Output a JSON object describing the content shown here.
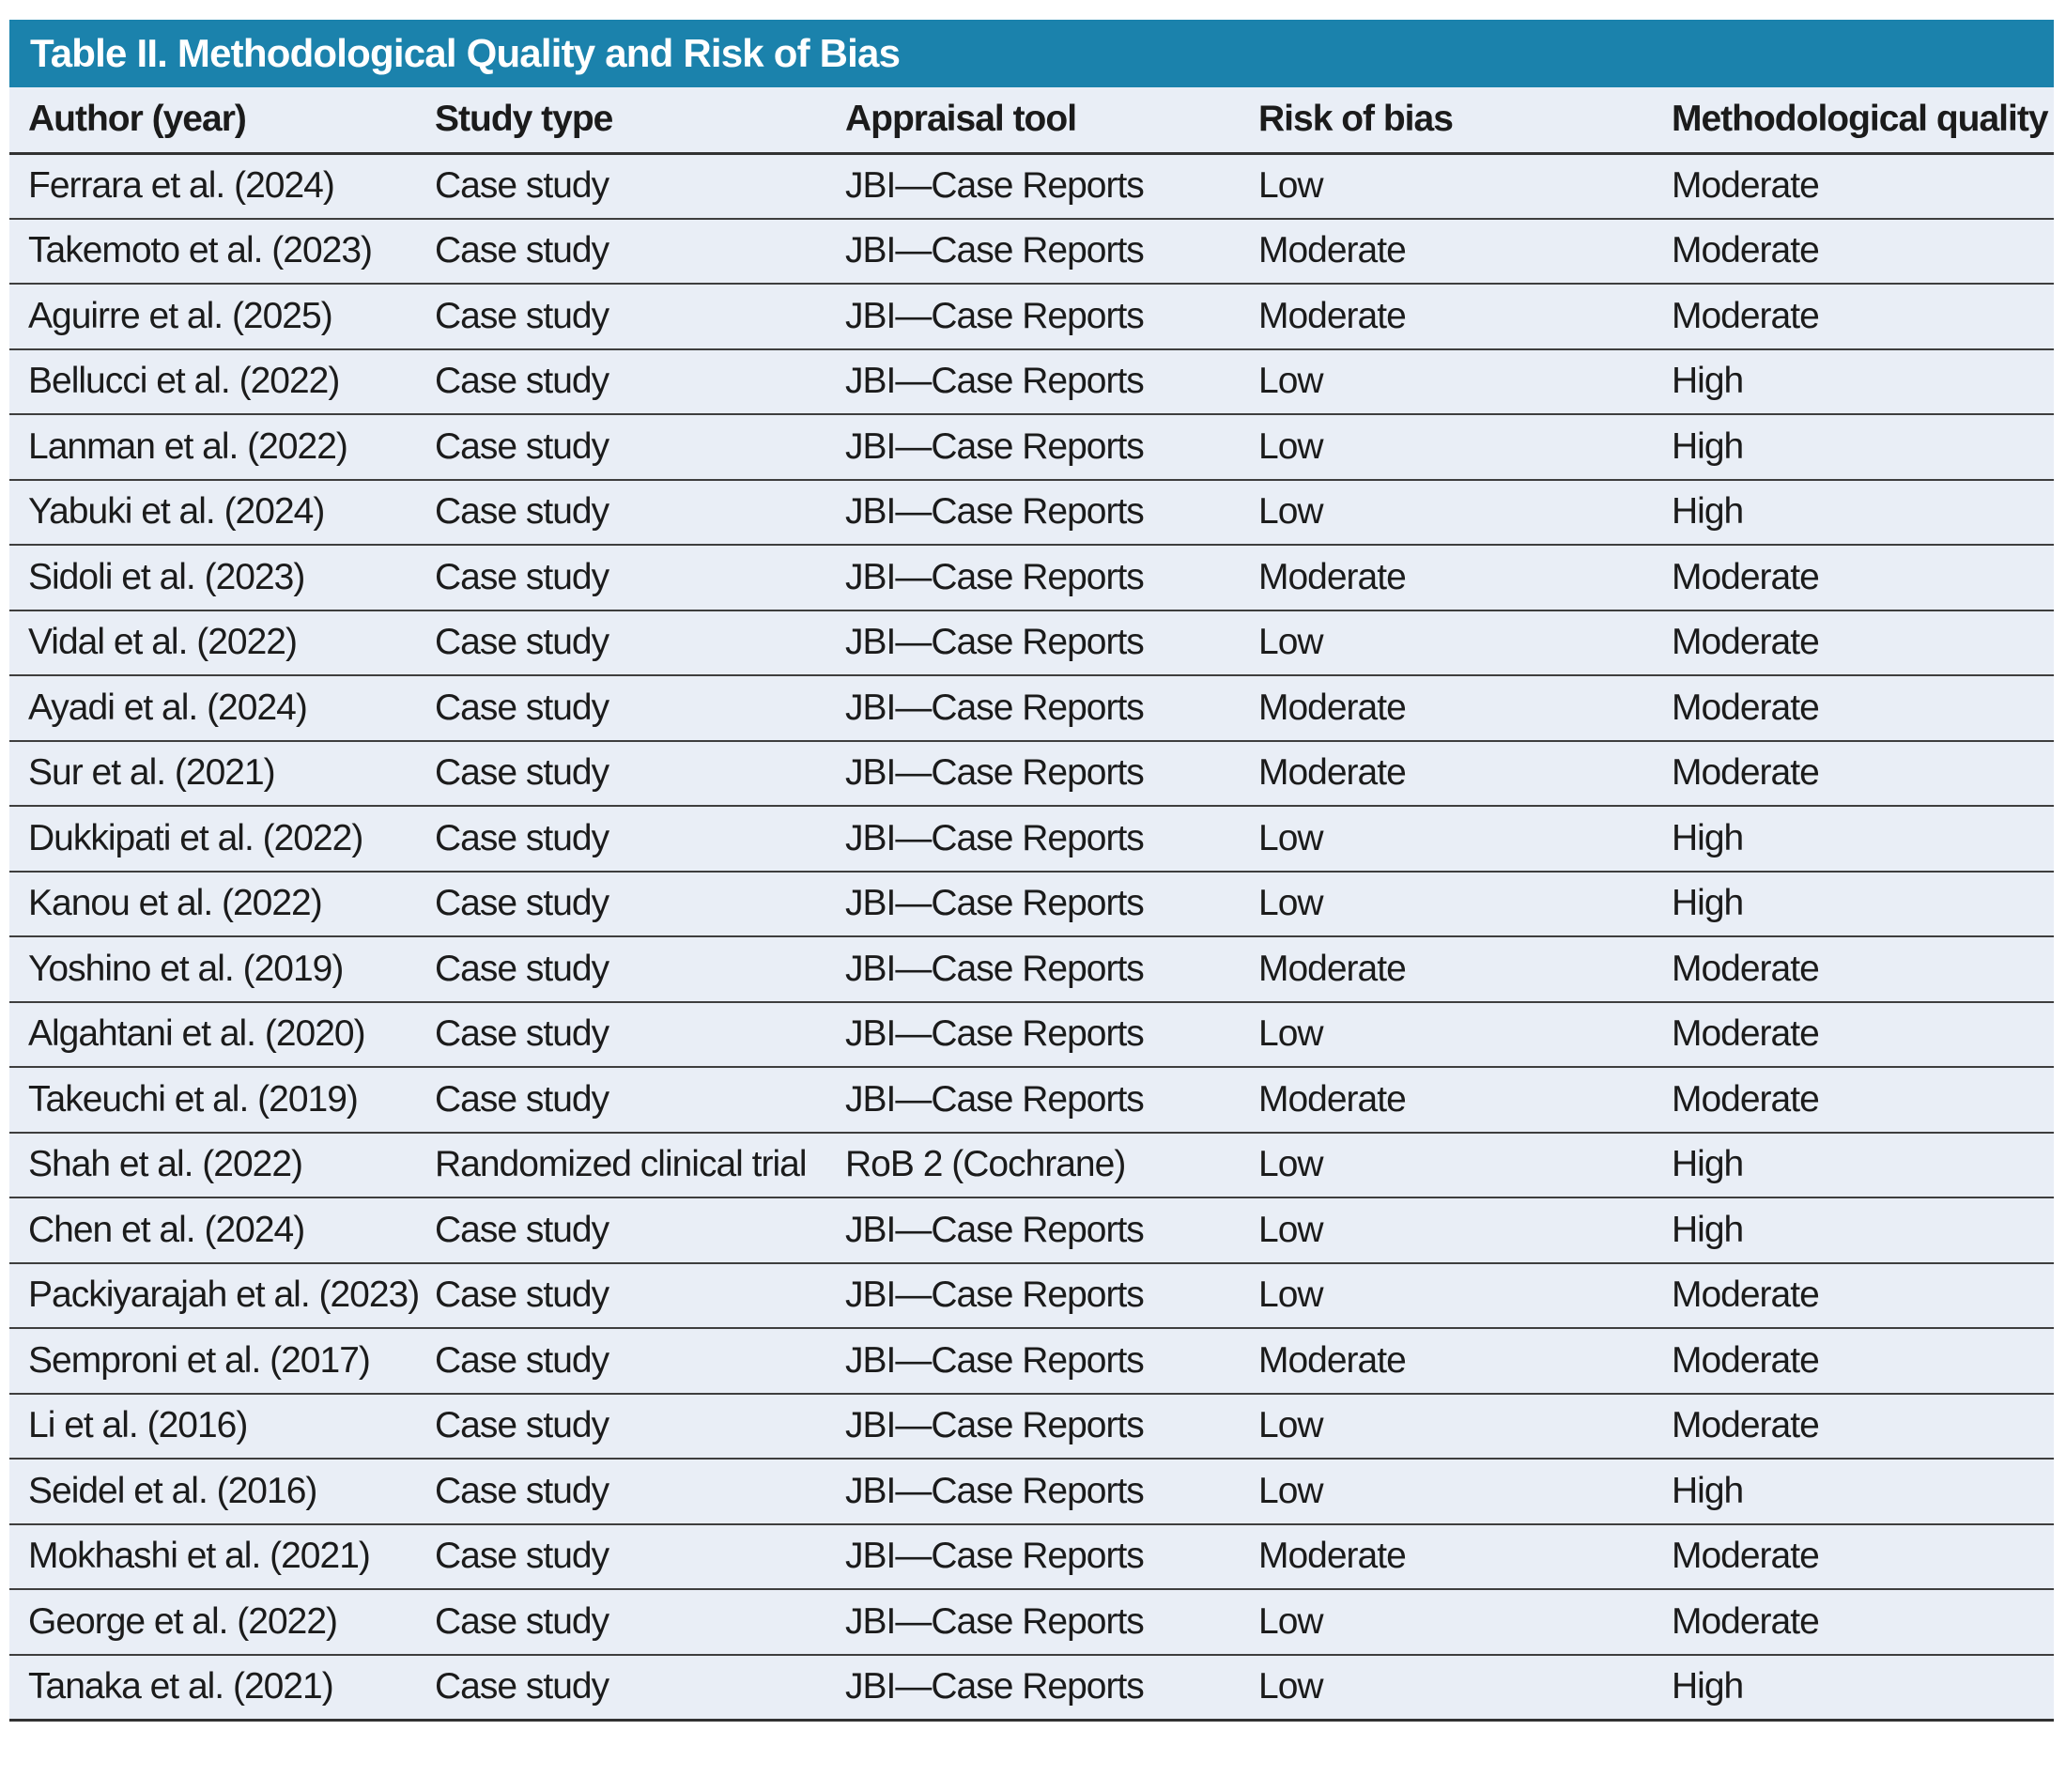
{
  "table": {
    "title": "Table II. Methodological Quality and Risk of Bias",
    "columns": [
      "Author (year)",
      "Study type",
      "Appraisal tool",
      "Risk of bias",
      "Methodological quality"
    ],
    "rows": [
      [
        "Ferrara et al. (2024)",
        "Case study",
        "JBI—Case Reports",
        "Low",
        "Moderate"
      ],
      [
        "Takemoto et al. (2023)",
        "Case study",
        "JBI—Case Reports",
        "Moderate",
        "Moderate"
      ],
      [
        "Aguirre et al. (2025)",
        "Case study",
        "JBI—Case Reports",
        "Moderate",
        "Moderate"
      ],
      [
        "Bellucci et al. (2022)",
        "Case study",
        "JBI—Case Reports",
        "Low",
        "High"
      ],
      [
        "Lanman et al. (2022)",
        "Case study",
        "JBI—Case Reports",
        "Low",
        "High"
      ],
      [
        "Yabuki et al. (2024)",
        "Case study",
        "JBI—Case Reports",
        "Low",
        "High"
      ],
      [
        "Sidoli et al. (2023)",
        "Case study",
        "JBI—Case Reports",
        "Moderate",
        "Moderate"
      ],
      [
        "Vidal et al. (2022)",
        "Case study",
        "JBI—Case Reports",
        "Low",
        "Moderate"
      ],
      [
        "Ayadi et al. (2024)",
        "Case study",
        "JBI—Case Reports",
        "Moderate",
        "Moderate"
      ],
      [
        "Sur et al. (2021)",
        "Case study",
        "JBI—Case Reports",
        "Moderate",
        "Moderate"
      ],
      [
        "Dukkipati et al. (2022)",
        "Case study",
        "JBI—Case Reports",
        "Low",
        "High"
      ],
      [
        "Kanou et al. (2022)",
        "Case study",
        "JBI—Case Reports",
        "Low",
        "High"
      ],
      [
        "Yoshino et al. (2019)",
        "Case study",
        "JBI—Case Reports",
        "Moderate",
        "Moderate"
      ],
      [
        "Algahtani et al. (2020)",
        "Case study",
        "JBI—Case Reports",
        "Low",
        "Moderate"
      ],
      [
        "Takeuchi et al. (2019)",
        "Case study",
        "JBI—Case Reports",
        "Moderate",
        "Moderate"
      ],
      [
        "Shah et al. (2022)",
        "Randomized clinical trial",
        "RoB 2 (Cochrane)",
        "Low",
        "High"
      ],
      [
        "Chen et al. (2024)",
        "Case study",
        "JBI—Case Reports",
        "Low",
        "High"
      ],
      [
        "Packiyarajah et al. (2023)",
        "Case study",
        "JBI—Case Reports",
        "Low",
        "Moderate"
      ],
      [
        "Semproni et al. (2017)",
        "Case study",
        "JBI—Case Reports",
        "Moderate",
        "Moderate"
      ],
      [
        "Li et al. (2016)",
        "Case study",
        "JBI—Case Reports",
        "Low",
        "Moderate"
      ],
      [
        "Seidel et al. (2016)",
        "Case study",
        "JBI—Case Reports",
        "Low",
        "High"
      ],
      [
        "Mokhashi et al. (2021)",
        "Case study",
        "JBI—Case Reports",
        "Moderate",
        "Moderate"
      ],
      [
        "George et al. (2022)",
        "Case study",
        "JBI—Case Reports",
        "Low",
        "Moderate"
      ],
      [
        "Tanaka et al. (2021)",
        "Case study",
        "JBI—Case Reports",
        "Low",
        "High"
      ]
    ]
  },
  "colors": {
    "title_bar": "#1b82ac",
    "title_text": "#ffffff",
    "row_bg": "#e9eef6",
    "text": "#1b1b1b",
    "border": "#3e3e3e",
    "border_strong": "#323232"
  }
}
